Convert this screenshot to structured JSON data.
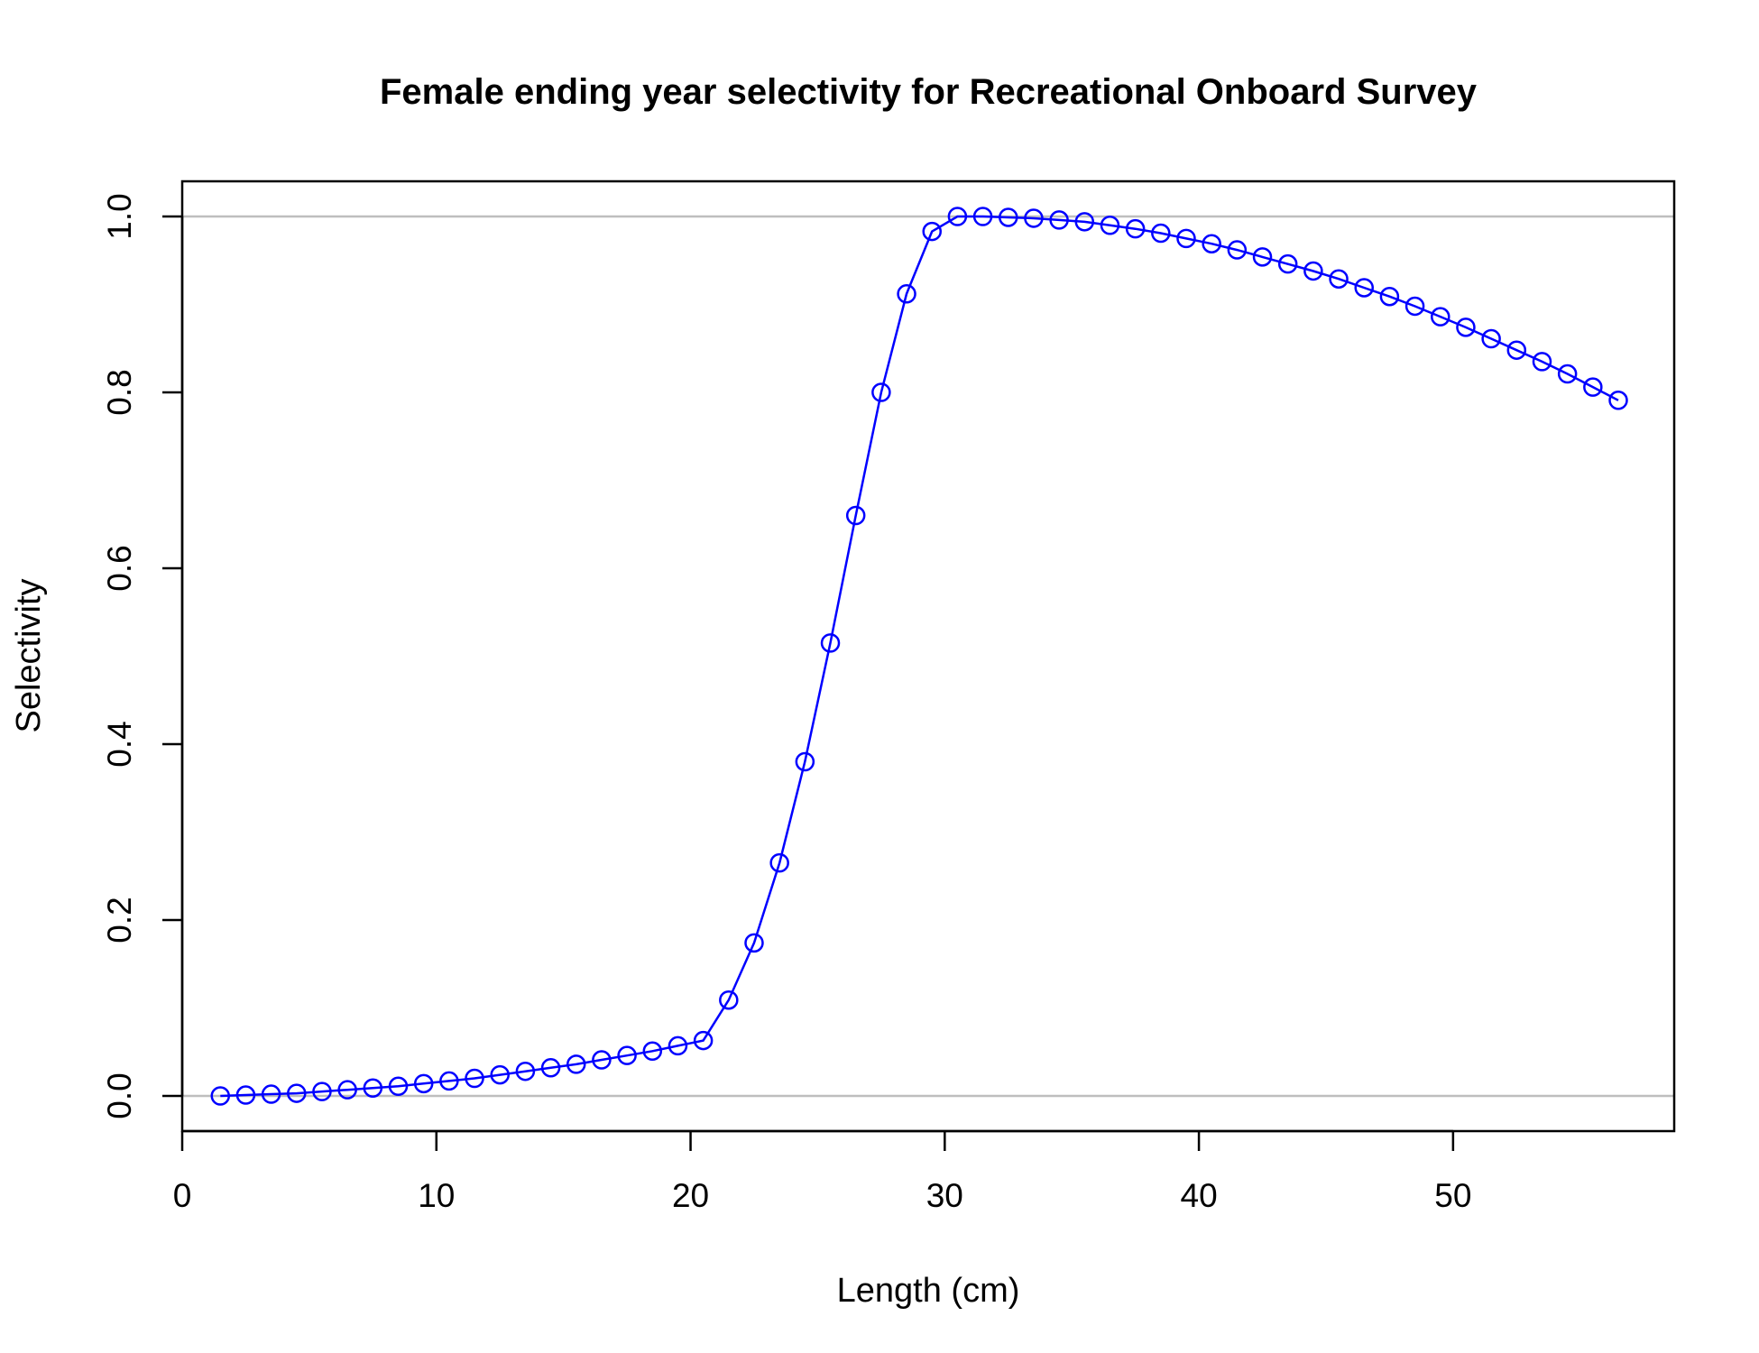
{
  "chart_data": {
    "type": "line",
    "title": "Female ending year selectivity for Recreational Onboard Survey",
    "xlabel": "Length (cm)",
    "ylabel": "Selectivity",
    "xlim": [
      0,
      58.7
    ],
    "ylim": [
      -0.04,
      1.04
    ],
    "x_ticks": [
      "0",
      "10",
      "20",
      "30",
      "40",
      "50"
    ],
    "y_ticks": [
      "0.0",
      "0.2",
      "0.4",
      "0.6",
      "0.8",
      "1.0"
    ],
    "reference_lines": [
      0,
      1
    ],
    "grid": false,
    "legend": "none",
    "colors": {
      "series": "#0000ff",
      "reference": "#bebebe",
      "axis": "#000000"
    },
    "series": [
      {
        "marker": "open-circle",
        "x": [
          1.5,
          2.5,
          3.5,
          4.5,
          5.5,
          6.5,
          7.5,
          8.5,
          9.5,
          10.5,
          11.5,
          12.5,
          13.5,
          14.5,
          15.5,
          16.5,
          17.5,
          18.5,
          19.5,
          20.5,
          21.5,
          22.5,
          23.5,
          24.5,
          25.5,
          26.5,
          27.5,
          28.5,
          29.5,
          30.5,
          31.5,
          32.5,
          33.5,
          34.5,
          35.5,
          36.5,
          37.5,
          38.5,
          39.5,
          40.5,
          41.5,
          42.5,
          43.5,
          44.5,
          45.5,
          46.5,
          47.5,
          48.5,
          49.5,
          50.5,
          51.5,
          52.5,
          53.5,
          54.5,
          55.5,
          56.5
        ],
        "y": [
          0.0,
          0.001,
          0.002,
          0.003,
          0.005,
          0.007,
          0.009,
          0.011,
          0.014,
          0.017,
          0.02,
          0.024,
          0.028,
          0.032,
          0.036,
          0.041,
          0.046,
          0.051,
          0.057,
          0.063,
          0.109,
          0.174,
          0.265,
          0.38,
          0.515,
          0.66,
          0.8,
          0.912,
          0.983,
          1.0,
          1.0,
          0.999,
          0.998,
          0.996,
          0.994,
          0.99,
          0.986,
          0.981,
          0.975,
          0.969,
          0.962,
          0.954,
          0.946,
          0.938,
          0.929,
          0.919,
          0.909,
          0.898,
          0.886,
          0.874,
          0.861,
          0.848,
          0.835,
          0.821,
          0.806,
          0.791
        ]
      }
    ]
  }
}
